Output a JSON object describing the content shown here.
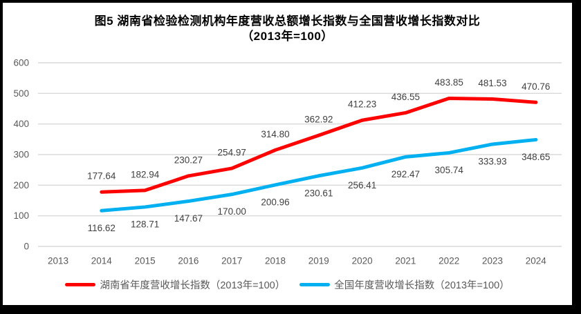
{
  "title": {
    "line1": "图5 湖南省检验检测机构年度营收总额增长指数与全国营收增长指数对比",
    "line2": "（2013年=100）"
  },
  "chart_data": {
    "type": "line",
    "title": "图5 湖南省检验检测机构年度营收总额增长指数与全国营收增长指数对比（2013年=100）",
    "categories": [
      2013,
      2014,
      2015,
      2016,
      2017,
      2018,
      2019,
      2020,
      2021,
      2022,
      2023,
      2024
    ],
    "series": [
      {
        "name": "湖南省年度营收增长指数（2013年=100）",
        "key": "hunan",
        "color": "#FF0000",
        "x": [
          2014,
          2015,
          2016,
          2017,
          2018,
          2019,
          2020,
          2021,
          2022,
          2023,
          2024
        ],
        "values": [
          177.64,
          182.94,
          230.27,
          254.97,
          314.8,
          362.92,
          412.23,
          436.55,
          483.85,
          481.53,
          470.76
        ],
        "label_position": "above"
      },
      {
        "name": "全国年度营收增长指数（2013年=100）",
        "key": "national",
        "color": "#00B0F0",
        "x": [
          2014,
          2015,
          2016,
          2017,
          2018,
          2019,
          2020,
          2021,
          2022,
          2023,
          2024
        ],
        "values": [
          116.62,
          128.71,
          147.67,
          170.0,
          200.96,
          230.61,
          256.41,
          292.47,
          305.74,
          333.93,
          348.65
        ],
        "label_position": "below"
      }
    ],
    "xlabel": "",
    "ylabel": "",
    "ylim": [
      0,
      600
    ],
    "yticks": [
      0,
      100,
      200,
      300,
      400,
      500,
      600
    ],
    "grid": true,
    "legend_position": "bottom",
    "data_label_decimals": 2
  },
  "colors": {
    "frame": "#000000",
    "background": "#FFFFFF",
    "gridline": "#D9D9D9",
    "axis_text": "#595959",
    "data_label_text": "#404040",
    "title_text": "#000000",
    "legend_text": "#595959"
  }
}
